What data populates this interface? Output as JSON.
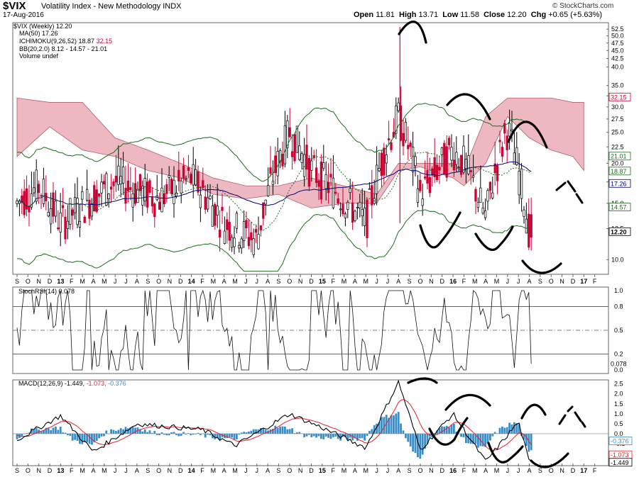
{
  "header": {
    "symbol": "$VIX",
    "description": "Volatility Index - New Methodology INDX",
    "date": "17-Aug-2016",
    "brand": "© StockCharts.com",
    "quote": {
      "open_label": "Open",
      "open": "11.81",
      "high_label": "High",
      "high": "13.71",
      "low_label": "Low",
      "low": "11.58",
      "close_label": "Close",
      "close": "12.20",
      "chg_label": "Chg",
      "chg": "+0.65 (+5.63%)"
    }
  },
  "legend": {
    "price": "$VIX (Weekly) 12.20",
    "ma": "MA(50) 17.26",
    "ichimoku": "ICHIMOKU(9,26,52) 18.87",
    "ichimoku_red": "32.15",
    "bb": "BB(20,2.0) 8.12 - 14.57 - 21.01",
    "volume": "Volume undef",
    "stoch": "StochRSI(14) 0.078",
    "macd": "MACD(12,26,9) -1.449,",
    "macd_signal": "-1.073,",
    "macd_hist": "-0.376"
  },
  "colors": {
    "up": "#ffffff",
    "down": "#cc0033",
    "ma": "#00007a",
    "bb": "#1f6b1f",
    "cloud": "#e8a0ab",
    "stoch_fill_top": "#5a8a5a",
    "stoch_fill_bottom": "#9a6a6a",
    "macd_hist": "#3a8ec8",
    "macd_signal": "#e0202a"
  },
  "x_months": [
    "S",
    "O",
    "N",
    "D",
    "13",
    "F",
    "M",
    "A",
    "M",
    "J",
    "J",
    "A",
    "S",
    "O",
    "N",
    "D",
    "14",
    "F",
    "M",
    "A",
    "M",
    "J",
    "J",
    "A",
    "S",
    "O",
    "N",
    "D",
    "15",
    "F",
    "M",
    "A",
    "M",
    "J",
    "J",
    "A",
    "S",
    "O",
    "N",
    "D",
    "16",
    "F",
    "M",
    "A",
    "M",
    "J",
    "J",
    "A",
    "S",
    "O",
    "N",
    "D",
    "17",
    "F"
  ],
  "price_axis_labels": [
    "52.5",
    "50.0",
    "47.5",
    "45.0",
    "42.5",
    "40.0",
    "35.0",
    "32.5",
    "30.0",
    "27.5",
    "25.0",
    "22.5",
    "20.0",
    "17.5",
    "15.0",
    "12.5",
    "10.0"
  ],
  "price_value_tags": [
    "32.15",
    "21.01",
    "18.87",
    "17.26",
    "14.57",
    "12.20"
  ],
  "stoch_axis_labels": [
    "1.0",
    "0.8",
    "0.5",
    "0.2",
    "0.0"
  ],
  "stoch_value_tag": "0.078",
  "macd_axis_labels": [
    "2.5",
    "2.0",
    "1.5",
    "1.0",
    "0.5",
    "0.0",
    "-0.5",
    "-1.0",
    "-1.5"
  ],
  "macd_value_tags": [
    "-0.376",
    "-1.073",
    "-1.449"
  ],
  "chart_data": [
    {
      "type": "candlestick",
      "title": "$VIX (Weekly)",
      "x_range": [
        "2012-09",
        "2017-02"
      ],
      "ylim": [
        9,
        55
      ],
      "y_scale": "log",
      "key_points": [
        {
          "x": "2012-09",
          "close": 15.0
        },
        {
          "x": "2012-11",
          "close": 17.0
        },
        {
          "x": "2013-01",
          "close": 13.0
        },
        {
          "x": "2013-06",
          "close": 17.5
        },
        {
          "x": "2013-10",
          "close": 15.5
        },
        {
          "x": "2014-01",
          "close": 18.0
        },
        {
          "x": "2014-04",
          "close": 13.0
        },
        {
          "x": "2014-07",
          "close": 11.5
        },
        {
          "x": "2014-10",
          "close": 25.0
        },
        {
          "x": "2014-12",
          "close": 19.0
        },
        {
          "x": "2015-03",
          "close": 15.5
        },
        {
          "x": "2015-05",
          "close": 13.0
        },
        {
          "x": "2015-08",
          "close": 28.0
        },
        {
          "x": "2015-10",
          "close": 16.0
        },
        {
          "x": "2016-01",
          "close": 22.0
        },
        {
          "x": "2016-02",
          "close": 20.0
        },
        {
          "x": "2016-04",
          "close": 13.5
        },
        {
          "x": "2016-06",
          "close": 25.7
        },
        {
          "x": "2016-08",
          "close": 12.2
        }
      ],
      "spike_high": {
        "x": "2015-08",
        "value": 53.3
      }
    },
    {
      "type": "line",
      "title": "StochRSI(14)",
      "ylim": [
        0,
        1
      ],
      "reference_lines": [
        0.8,
        0.5,
        0.2
      ],
      "last_value": 0.078
    },
    {
      "type": "line",
      "title": "MACD(12,26,9)",
      "ylim": [
        -1.6,
        2.7
      ],
      "series": [
        {
          "name": "MACD",
          "last_value": -1.449
        },
        {
          "name": "Signal",
          "last_value": -1.073
        },
        {
          "name": "Histogram",
          "last_value": -0.376
        }
      ],
      "key_points": [
        {
          "x": "2015-08",
          "macd": 2.6
        },
        {
          "x": "2015-10",
          "macd": -0.8
        },
        {
          "x": "2016-01",
          "macd": 1.0
        },
        {
          "x": "2016-04",
          "macd": -1.4
        },
        {
          "x": "2016-07",
          "macd": 0.6
        },
        {
          "x": "2016-08",
          "macd": -1.449
        }
      ]
    }
  ]
}
